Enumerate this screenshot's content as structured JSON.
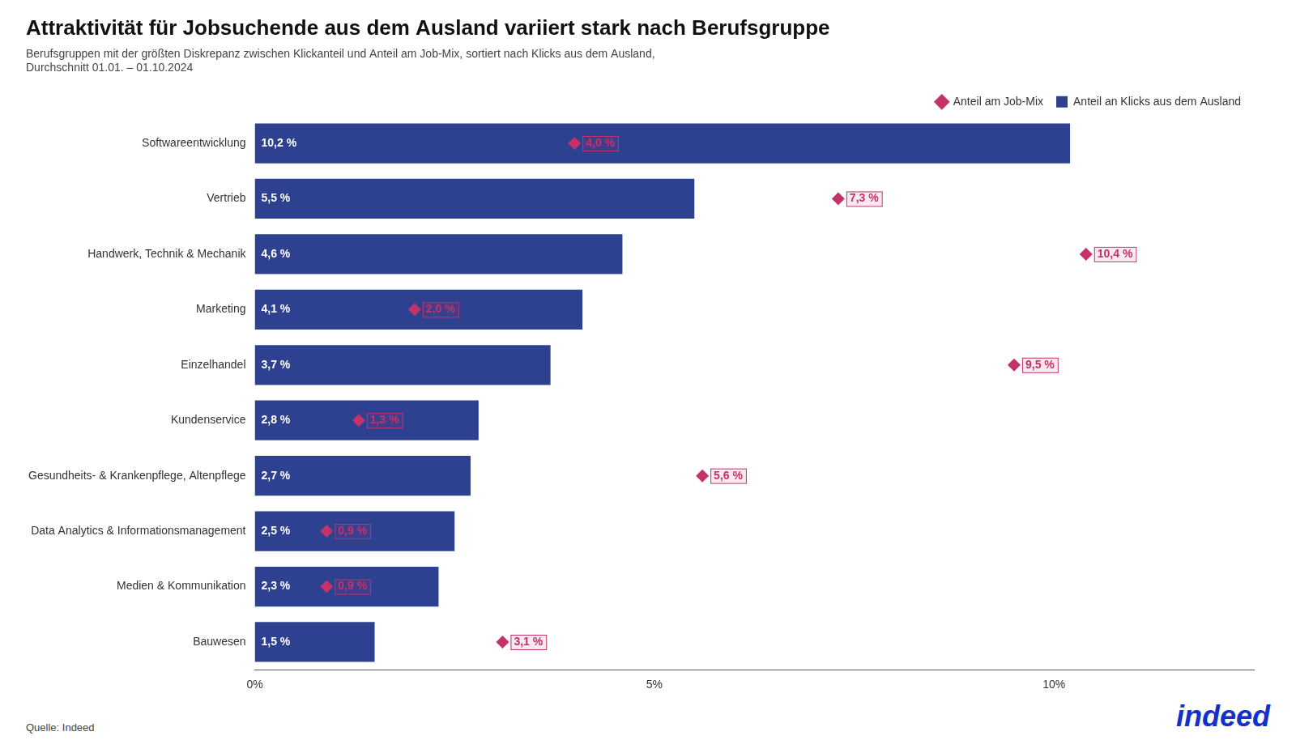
{
  "chart_data": {
    "type": "bar",
    "orientation": "horizontal",
    "title": "Attraktivität für Jobsuchende aus dem Ausland variiert stark nach Berufsgruppe",
    "subtitle": "Berufsgruppen mit der größten Diskrepanz zwischen Klickanteil und Anteil am Job-Mix, sortiert nach Klicks aus dem Ausland,\nDurchschnitt 01.01. – 01.10.2024",
    "categories": [
      "Softwareentwicklung",
      "Vertrieb",
      "Handwerk, Technik & Mechanik",
      "Marketing",
      "Einzelhandel",
      "Kundenservice",
      "Gesundheits- & Krankenpflege, Altenpflege",
      "Data Analytics & Informationsmanagement",
      "Medien & Kommunikation",
      "Bauwesen"
    ],
    "series": [
      {
        "name": "Anteil an Klicks aus dem Ausland",
        "type": "bar",
        "color": "#2E4090",
        "values": [
          10.2,
          5.5,
          4.6,
          4.1,
          3.7,
          2.8,
          2.7,
          2.5,
          2.3,
          1.5
        ],
        "value_labels": [
          "10,2 %",
          "5,5 %",
          "4,6 %",
          "4,1 %",
          "3,7 %",
          "2,8 %",
          "2,7 %",
          "2,5 %",
          "2,3 %",
          "1,5 %"
        ]
      },
      {
        "name": "Anteil am Job-Mix",
        "type": "scatter",
        "marker": "diamond",
        "color": "#C4326A",
        "values": [
          4.0,
          7.3,
          10.4,
          2.0,
          9.5,
          1.3,
          5.6,
          0.9,
          0.9,
          3.1
        ],
        "value_labels": [
          "4,0 %",
          "7,3 %",
          "10,4 %",
          "2,0 %",
          "9,5 %",
          "1,3 %",
          "5,6 %",
          "0,9 %",
          "0,9 %",
          "3,1 %"
        ]
      }
    ],
    "xlim": [
      0,
      12.5
    ],
    "xticks": [
      {
        "value": 0,
        "label": "0%"
      },
      {
        "value": 5,
        "label": "5%"
      },
      {
        "value": 10,
        "label": "10%"
      }
    ],
    "grid": false,
    "legend": "upper right",
    "data_labels": true,
    "annotations": [
      {
        "text": "Quelle: Indeed"
      },
      {
        "text": "indeed",
        "color": "#1530C8"
      }
    ]
  }
}
